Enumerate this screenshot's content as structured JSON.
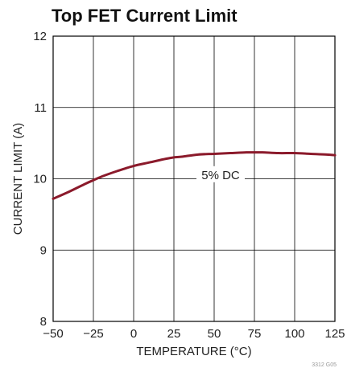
{
  "chart_data": {
    "type": "line",
    "title": "Top FET Current Limit",
    "xlabel": "TEMPERATURE (°C)",
    "ylabel": "CURRENT LIMIT (A)",
    "xlim": [
      -50,
      125
    ],
    "ylim": [
      8,
      12
    ],
    "x_ticks": [
      -50,
      -25,
      0,
      25,
      50,
      75,
      100,
      125
    ],
    "x_tick_labels": [
      "−50",
      "−25",
      "0",
      "25",
      "50",
      "75",
      "100",
      "125"
    ],
    "y_ticks": [
      8,
      9,
      10,
      11,
      12
    ],
    "y_tick_labels": [
      "8",
      "9",
      "10",
      "11",
      "12"
    ],
    "grid": true,
    "series": [
      {
        "name": "5% DC",
        "color": "#8b1a2b",
        "x": [
          -50,
          -40,
          -30,
          -25,
          -20,
          -10,
          0,
          10,
          20,
          25,
          30,
          40,
          50,
          60,
          70,
          75,
          80,
          90,
          100,
          110,
          120,
          125
        ],
        "y": [
          9.72,
          9.82,
          9.93,
          9.98,
          10.03,
          10.11,
          10.18,
          10.23,
          10.28,
          10.3,
          10.31,
          10.34,
          10.35,
          10.36,
          10.37,
          10.37,
          10.37,
          10.36,
          10.36,
          10.35,
          10.34,
          10.33
        ]
      }
    ],
    "annotations": [
      {
        "text": "5% DC",
        "x": 54,
        "y": 10.03
      }
    ],
    "footnote": "3312 G05"
  }
}
